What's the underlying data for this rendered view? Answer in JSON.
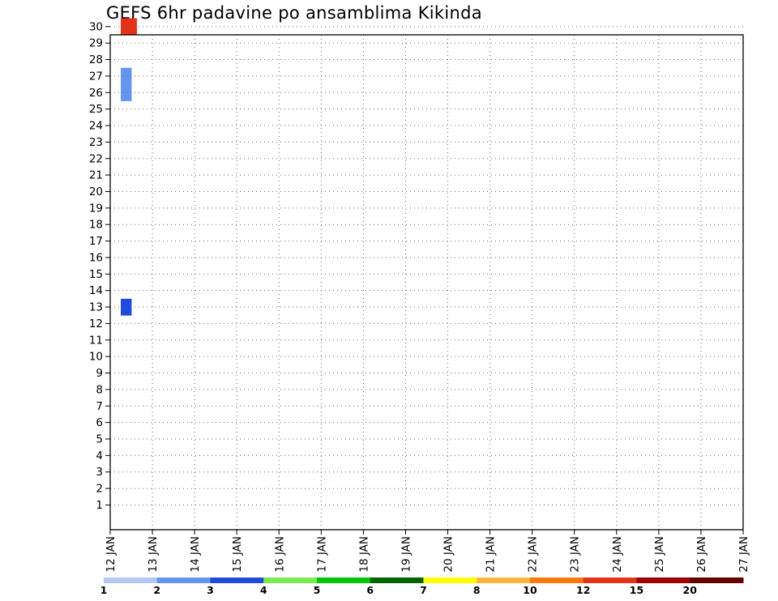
{
  "chart_data": {
    "type": "heatmap",
    "title": "GEFS 6hr padavine po ansamblima Kikinda",
    "xlabel": "",
    "ylabel": "",
    "x_ticks": [
      "12 JAN",
      "13 JAN",
      "14 JAN",
      "15 JAN",
      "16 JAN",
      "17 JAN",
      "18 JAN",
      "19 JAN",
      "20 JAN",
      "21 JAN",
      "22 JAN",
      "23 JAN",
      "24 JAN",
      "25 JAN",
      "26 JAN",
      "27 JAN"
    ],
    "x_unit": "days since 12 JAN 00z",
    "xlim": [
      0,
      15
    ],
    "y_ticks": [
      1,
      2,
      3,
      4,
      5,
      6,
      7,
      8,
      9,
      10,
      11,
      12,
      13,
      14,
      15,
      16,
      17,
      18,
      19,
      20,
      21,
      22,
      23,
      24,
      25,
      26,
      27,
      28,
      29,
      30
    ],
    "ylim": [
      0.5,
      30.5
    ],
    "grid": true,
    "legend": {
      "position": "bottom",
      "labels": [
        "1",
        "2",
        "3",
        "4",
        "5",
        "6",
        "7",
        "8",
        "10",
        "12",
        "15",
        "20"
      ],
      "colors": [
        "#b4c8f5",
        "#6496f0",
        "#1e4bdc",
        "#78eb50",
        "#00c800",
        "#006400",
        "#ffff00",
        "#ffb43c",
        "#ff780a",
        "#e63214",
        "#a00000",
        "#640000"
      ]
    },
    "cells": [
      {
        "x": 0.25,
        "y": 30,
        "c": 9
      },
      {
        "x": 0.375,
        "y": 30,
        "c": 9
      },
      {
        "x": 0.25,
        "y": 27,
        "c": 1
      },
      {
        "x": 0.25,
        "y": 26,
        "c": 1
      },
      {
        "x": 0.25,
        "y": 13,
        "c": 2
      }
    ]
  }
}
